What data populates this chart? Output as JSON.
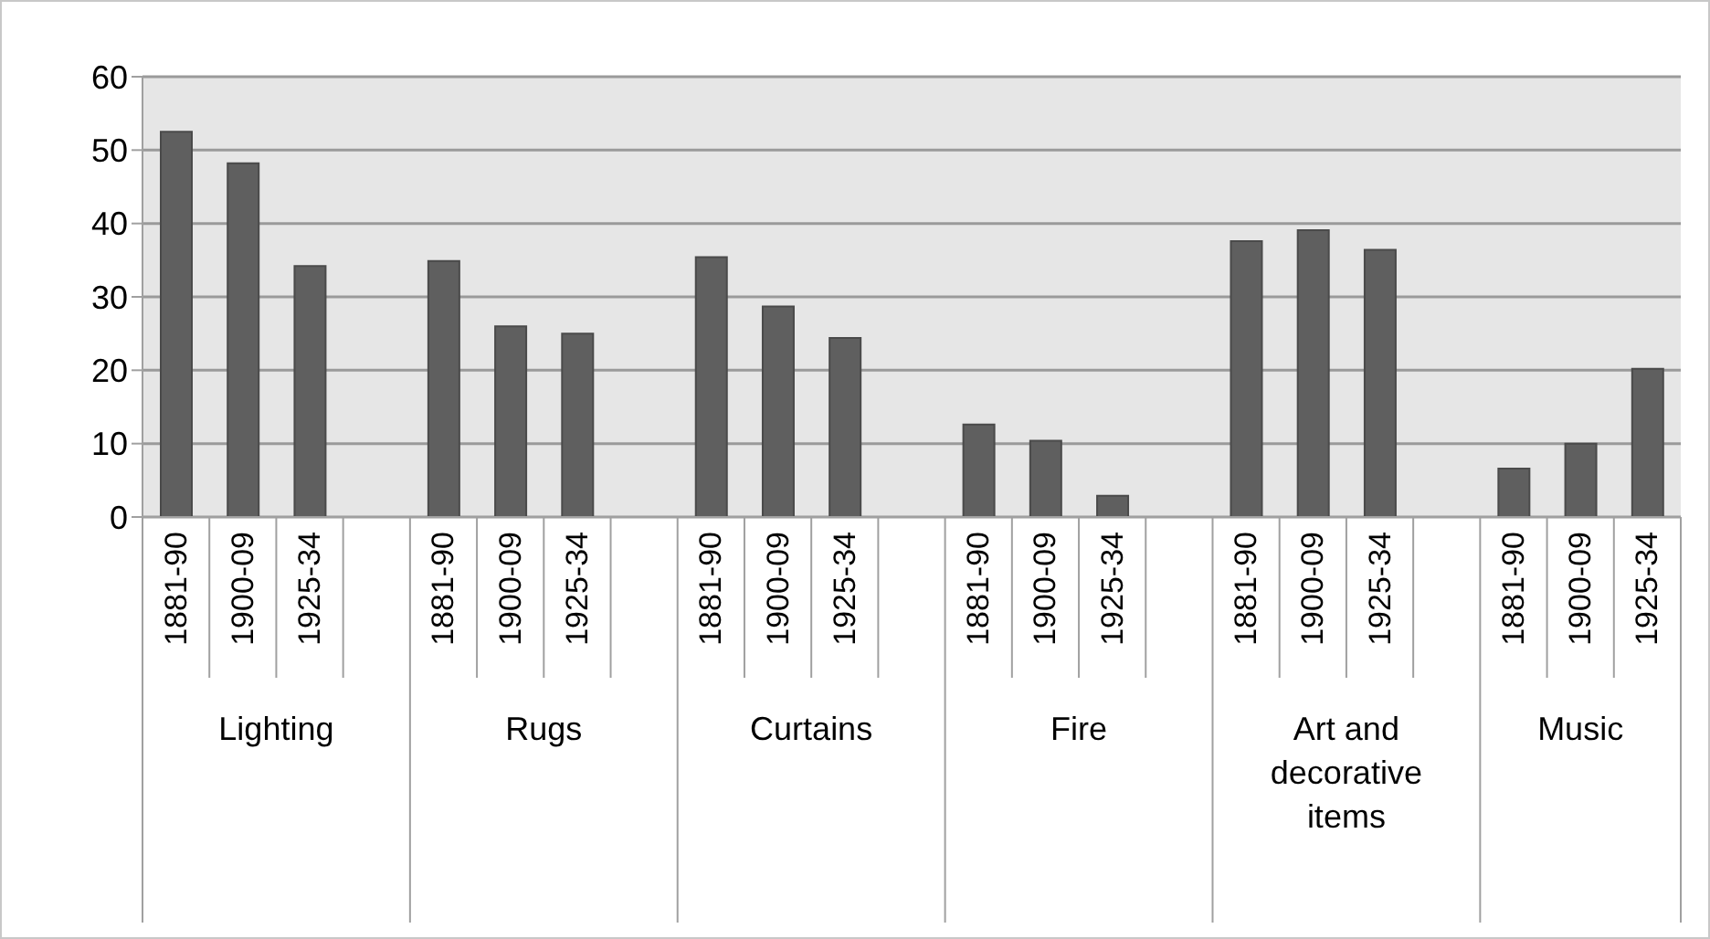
{
  "chart_data": {
    "type": "bar",
    "categories": [
      "1881-90",
      "1900-09",
      "1925-34",
      null,
      "1881-90",
      "1900-09",
      "1925-34",
      null,
      "1881-90",
      "1900-09",
      "1925-34",
      null,
      "1881-90",
      "1900-09",
      "1925-34",
      null,
      "1881-90",
      "1900-09",
      "1925-34",
      null,
      "1881-90",
      "1900-09",
      "1925-34"
    ],
    "values": [
      52.5,
      48.2,
      34.2,
      null,
      34.9,
      26.0,
      25.0,
      null,
      35.4,
      28.7,
      24.4,
      null,
      12.6,
      10.4,
      2.9,
      null,
      37.6,
      39.1,
      36.4,
      null,
      6.6,
      10.0,
      20.2
    ],
    "color": "#5f5f5f",
    "ylim": [
      0,
      60
    ],
    "yticks": [
      0,
      10,
      20,
      30,
      40,
      50,
      60
    ],
    "grid": "y",
    "annotations": [
      "Lighting",
      "Rugs",
      "Curtains",
      "Fire",
      "Art and decorative items",
      "Music"
    ]
  }
}
